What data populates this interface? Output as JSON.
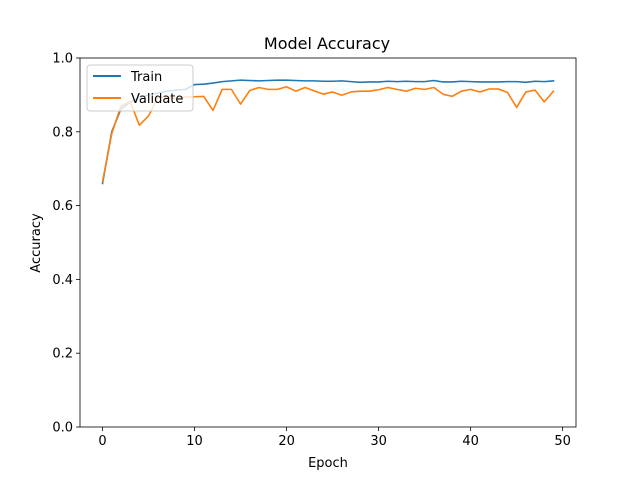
{
  "chart_data": {
    "type": "line",
    "title": "Model Accuracy",
    "xlabel": "Epoch",
    "ylabel": "Accuracy",
    "xlim": [
      -2.45,
      51.45
    ],
    "ylim": [
      0.0,
      1.0
    ],
    "x_ticks": [
      0,
      10,
      20,
      30,
      40,
      50
    ],
    "y_ticks": [
      0.0,
      0.2,
      0.4,
      0.6,
      0.8,
      1.0
    ],
    "x_tick_labels": [
      "0",
      "10",
      "20",
      "30",
      "40",
      "50"
    ],
    "y_tick_labels": [
      "0.0",
      "0.2",
      "0.4",
      "0.6",
      "0.8",
      "1.0"
    ],
    "grid": false,
    "legend_position": "top-left",
    "x": [
      0,
      1,
      2,
      3,
      4,
      5,
      6,
      7,
      8,
      9,
      10,
      11,
      12,
      13,
      14,
      15,
      16,
      17,
      18,
      19,
      20,
      21,
      22,
      23,
      24,
      25,
      26,
      27,
      28,
      29,
      30,
      31,
      32,
      33,
      34,
      35,
      36,
      37,
      38,
      39,
      40,
      41,
      42,
      43,
      44,
      45,
      46,
      47,
      48,
      49
    ],
    "series": [
      {
        "name": "Train",
        "color": "#1f77b4",
        "values": [
          0.66,
          0.8,
          0.862,
          0.88,
          0.893,
          0.9,
          0.905,
          0.91,
          0.913,
          0.915,
          0.928,
          0.929,
          0.932,
          0.936,
          0.938,
          0.94,
          0.939,
          0.938,
          0.939,
          0.94,
          0.94,
          0.939,
          0.938,
          0.938,
          0.937,
          0.937,
          0.938,
          0.936,
          0.934,
          0.935,
          0.935,
          0.937,
          0.936,
          0.937,
          0.936,
          0.936,
          0.939,
          0.935,
          0.935,
          0.937,
          0.936,
          0.935,
          0.935,
          0.935,
          0.936,
          0.936,
          0.934,
          0.937,
          0.936,
          0.938
        ]
      },
      {
        "name": "Validate",
        "color": "#ff7f0e",
        "values": [
          0.665,
          0.795,
          0.87,
          0.882,
          0.818,
          0.843,
          0.893,
          0.893,
          0.89,
          0.894,
          0.895,
          0.896,
          0.858,
          0.915,
          0.915,
          0.875,
          0.912,
          0.92,
          0.915,
          0.915,
          0.922,
          0.91,
          0.92,
          0.911,
          0.902,
          0.908,
          0.899,
          0.908,
          0.91,
          0.91,
          0.914,
          0.92,
          0.915,
          0.91,
          0.918,
          0.915,
          0.92,
          0.902,
          0.896,
          0.91,
          0.915,
          0.908,
          0.916,
          0.916,
          0.907,
          0.866,
          0.908,
          0.913,
          0.881,
          0.91
        ]
      }
    ]
  }
}
